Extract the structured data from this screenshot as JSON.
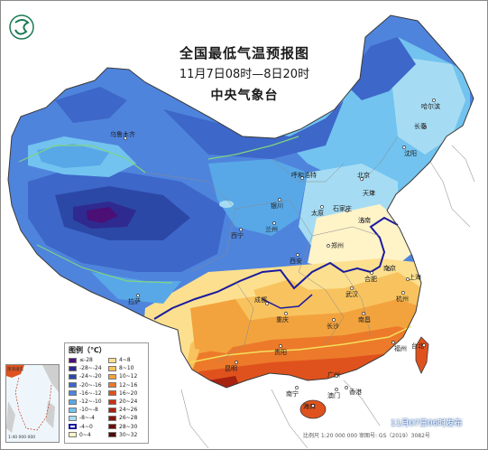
{
  "header": {
    "title": "全国最低气温预报图",
    "period": "11月7日08时—8日20时",
    "issuer": "中央气象台"
  },
  "legend": {
    "title": "图例（℃）",
    "left_column": [
      {
        "label": "≤-28",
        "color": "#4b0f75"
      },
      {
        "label": "-28~-24",
        "color": "#2f2a8f"
      },
      {
        "label": "-24~-20",
        "color": "#2c48a6"
      },
      {
        "label": "-20~-16",
        "color": "#3d67c9"
      },
      {
        "label": "-16~-12",
        "color": "#4f84dd"
      },
      {
        "label": "-12~-10",
        "color": "#58a8e8"
      },
      {
        "label": "-10~-8",
        "color": "#72c3ef"
      },
      {
        "label": "-8~-4",
        "color": "#a6dcf3"
      },
      {
        "label": "-4~0",
        "color": "#1a1a9e"
      },
      {
        "label": "0~4",
        "color": "#fff3c8"
      }
    ],
    "right_column": [
      {
        "label": "4~8",
        "color": "#fce08f"
      },
      {
        "label": "8~10",
        "color": "#f8c35e"
      },
      {
        "label": "10~12",
        "color": "#f3a33e"
      },
      {
        "label": "12~16",
        "color": "#ec7a2a"
      },
      {
        "label": "16~20",
        "color": "#e0521d"
      },
      {
        "label": "20~24",
        "color": "#c83214"
      },
      {
        "label": "24~26",
        "color": "#a7220f"
      },
      {
        "label": "26~28",
        "color": "#85150c"
      },
      {
        "label": "28~30",
        "color": "#6b0d0a"
      },
      {
        "label": "30~32",
        "color": "#500808"
      }
    ]
  },
  "cities": [
    {
      "name": "乌鲁木齐"
    },
    {
      "name": "拉萨"
    },
    {
      "name": "西宁"
    },
    {
      "name": "兰州"
    },
    {
      "name": "银川"
    },
    {
      "name": "西安"
    },
    {
      "name": "呼和浩特"
    },
    {
      "name": "北京"
    },
    {
      "name": "天津"
    },
    {
      "name": "石家庄"
    },
    {
      "name": "太原"
    },
    {
      "name": "济南"
    },
    {
      "name": "郑州"
    },
    {
      "name": "沈阳"
    },
    {
      "name": "长春"
    },
    {
      "name": "哈尔滨"
    },
    {
      "name": "南京"
    },
    {
      "name": "合肥"
    },
    {
      "name": "上海"
    },
    {
      "name": "杭州"
    },
    {
      "name": "武汉"
    },
    {
      "name": "成都"
    },
    {
      "name": "重庆"
    },
    {
      "name": "长沙"
    },
    {
      "name": "南昌"
    },
    {
      "name": "福州"
    },
    {
      "name": "台北"
    },
    {
      "name": "贵阳"
    },
    {
      "name": "昆明"
    },
    {
      "name": "南宁"
    },
    {
      "name": "广州"
    },
    {
      "name": "香港"
    },
    {
      "name": "澳门"
    },
    {
      "name": "海口"
    }
  ],
  "inset": {
    "label": "南海诸岛",
    "scale": "1:40 000 000"
  },
  "publish_stamp": "11月07日06时发布",
  "footer": "比例尺 1:20 000 000    审图号: GS（2019）3082号"
}
